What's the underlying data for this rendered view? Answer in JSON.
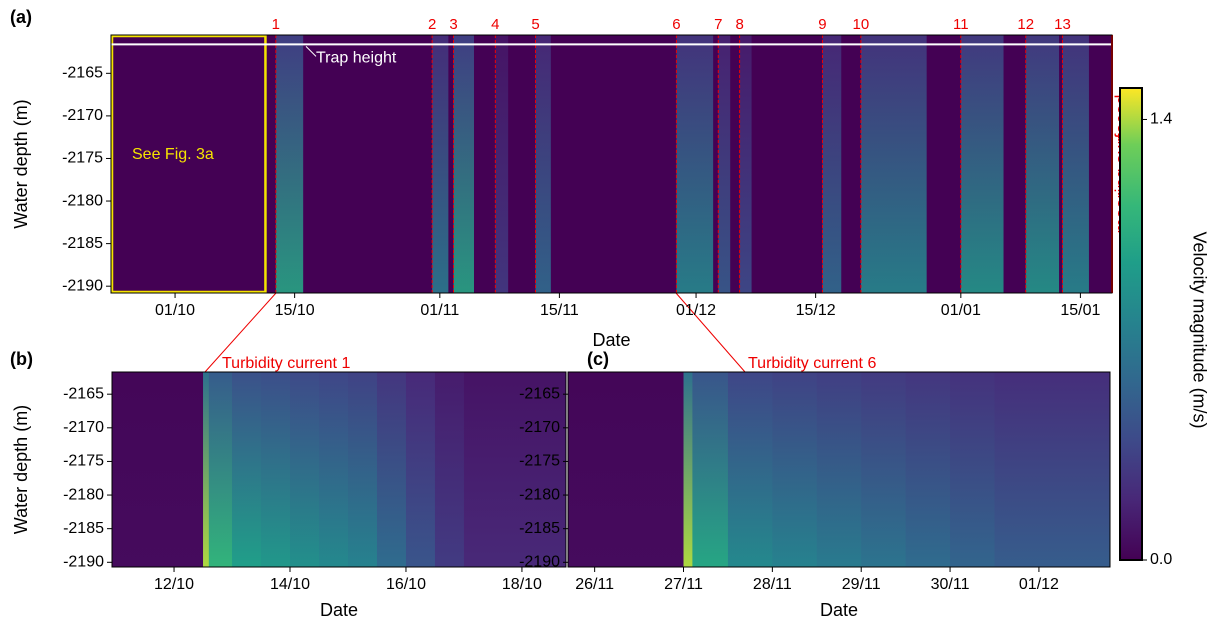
{
  "chart_data": [
    {
      "type": "heatmap",
      "label": "(a)",
      "xlabel": "Date",
      "ylabel": "Water depth (m)",
      "xlim": [
        -7.5,
        109.7
      ],
      "xticks": [
        {
          "value": 0,
          "label": "01/10"
        },
        {
          "value": 14,
          "label": "15/10"
        },
        {
          "value": 31,
          "label": "01/11"
        },
        {
          "value": 45,
          "label": "15/11"
        },
        {
          "value": 61,
          "label": "01/12"
        },
        {
          "value": 75,
          "label": "15/12"
        },
        {
          "value": 92,
          "label": "01/01"
        },
        {
          "value": 106,
          "label": "15/01"
        }
      ],
      "ylim": [
        -2190.8,
        -2160.5
      ],
      "yticks": [
        -2165,
        -2170,
        -2175,
        -2180,
        -2185,
        -2190
      ],
      "box": {
        "text": "See Fig. 3a",
        "x": [
          -7.5,
          10.7
        ]
      },
      "trap": {
        "text": "Trap height",
        "y": -2161.6
      },
      "edge_note": "mooring surfaced",
      "events": [
        {
          "label": "1",
          "x": 11.8,
          "end": 15,
          "peak": 1.0
        },
        {
          "label": "2",
          "x": 30.1,
          "end": 32,
          "peak": 0.7
        },
        {
          "label": "3",
          "x": 32.6,
          "end": 35,
          "peak": 1.0
        },
        {
          "label": "4",
          "x": 37.5,
          "end": 39,
          "peak": 0.3
        },
        {
          "label": "5",
          "x": 42.2,
          "end": 44,
          "peak": 0.6
        },
        {
          "label": "6",
          "x": 58.7,
          "end": 63,
          "peak": 0.8
        },
        {
          "label": "7",
          "x": 63.6,
          "end": 65,
          "peak": 0.5
        },
        {
          "label": "8",
          "x": 66.1,
          "end": 67.5,
          "peak": 0.4
        },
        {
          "label": "9",
          "x": 75.8,
          "end": 78,
          "peak": 0.6
        },
        {
          "label": "10",
          "x": 80.3,
          "end": 88,
          "peak": 0.8
        },
        {
          "label": "11",
          "x": 92.0,
          "end": 97,
          "peak": 0.9
        },
        {
          "label": "12",
          "x": 99.6,
          "end": 103.5,
          "peak": 0.9
        },
        {
          "label": "13",
          "x": 103.9,
          "end": 107,
          "peak": 0.8
        }
      ]
    },
    {
      "type": "heatmap",
      "label": "(b)",
      "title": "Turbidity current 1",
      "xlabel": "Date",
      "ylabel": "Water depth (m)",
      "xlim": [
        10.93,
        18.76
      ],
      "xticks": [
        {
          "value": 12,
          "label": "12/10"
        },
        {
          "value": 14,
          "label": "14/10"
        },
        {
          "value": 16,
          "label": "16/10"
        },
        {
          "value": 18,
          "label": "18/10"
        }
      ],
      "ylim": [
        -2190.7,
        -2161.7
      ],
      "yticks": [
        -2165,
        -2170,
        -2175,
        -2180,
        -2185,
        -2190
      ],
      "x": [
        10.93,
        12.5,
        12.6,
        13,
        13.5,
        14,
        14.5,
        15,
        15.5,
        16,
        16.5,
        17
      ],
      "values": [
        0.05,
        1.4,
        1.1,
        0.95,
        0.9,
        0.85,
        0.8,
        0.75,
        0.6,
        0.45,
        0.3,
        0.2
      ]
    },
    {
      "type": "heatmap",
      "label": "(c)",
      "title": "Turbidity current 6",
      "xlabel": "Date",
      "xlim": [
        25.7,
        31.8
      ],
      "xticks": [
        {
          "value": 26,
          "label": "26/11"
        },
        {
          "value": 27,
          "label": "27/11"
        },
        {
          "value": 28,
          "label": "28/11"
        },
        {
          "value": 29,
          "label": "29/11"
        },
        {
          "value": 30,
          "label": "30/11"
        },
        {
          "value": 31,
          "label": "01/12"
        }
      ],
      "ylim": [
        -2190.7,
        -2161.7
      ],
      "yticks": [
        -2165,
        -2170,
        -2175,
        -2180,
        -2185,
        -2190
      ],
      "x": [
        25.7,
        27.0,
        27.1,
        27.5,
        28,
        28.5,
        29,
        29.5,
        30,
        30.5,
        31
      ],
      "values": [
        0.05,
        1.4,
        1.0,
        0.8,
        0.75,
        0.7,
        0.65,
        0.6,
        0.55,
        0.5,
        0.5
      ]
    },
    {
      "type": "colorbar",
      "ylabel": "Velocity magnitude (m/s)",
      "ylim": [
        0,
        1.5
      ],
      "yticks": [
        {
          "value": 0,
          "label": "0.0"
        },
        1.4
      ]
    }
  ]
}
